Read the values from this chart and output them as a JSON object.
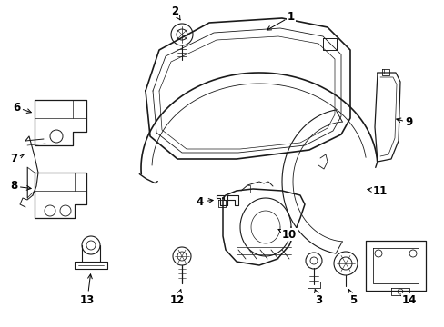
{
  "background_color": "#ffffff",
  "line_color": "#1a1a1a",
  "label_fontsize": 8.5,
  "fig_w": 4.89,
  "fig_h": 3.6,
  "dpi": 100
}
